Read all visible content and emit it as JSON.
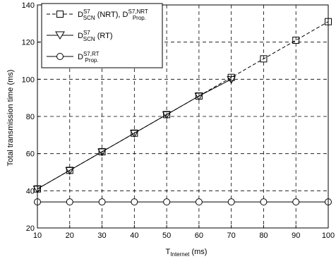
{
  "chart_data": {
    "type": "line",
    "xlabel": "T",
    "xlabel_sub": "Internet",
    "xlabel_unit": " (ms)",
    "ylabel": "Total transmission time (ms)",
    "xlim": [
      10,
      100
    ],
    "ylim": [
      20,
      140
    ],
    "xticks": [
      10,
      20,
      30,
      40,
      50,
      60,
      70,
      80,
      90,
      100
    ],
    "yticks": [
      20,
      40,
      60,
      80,
      100,
      120,
      140
    ],
    "grid": true,
    "legend_position": "top-left",
    "series": [
      {
        "id": "nrt",
        "line_style": "dashed",
        "marker": "square",
        "legend": {
          "d1": "D",
          "d1_sup": "S7",
          "d1_sub": "SCN",
          "mid": " (NRT), ",
          "d2": "D",
          "d2_sup": "S7,NRT",
          "d2_sub": "Prop."
        },
        "x": [
          10,
          20,
          30,
          40,
          50,
          60,
          70,
          80,
          90,
          100
        ],
        "y": [
          41,
          51,
          61,
          71,
          81,
          91,
          101,
          111,
          121,
          131
        ]
      },
      {
        "id": "rt",
        "line_style": "solid",
        "marker": "triangle-down",
        "legend": {
          "d1": "D",
          "d1_sup": "S7",
          "d1_sub": "SCN",
          "mid": " (RT)"
        },
        "x": [
          10,
          20,
          30,
          40,
          50,
          60,
          70
        ],
        "y": [
          41,
          51,
          61,
          71,
          81,
          91,
          100
        ]
      },
      {
        "id": "prop_rt",
        "line_style": "solid",
        "marker": "circle",
        "legend": {
          "d1": "D",
          "d1_sup": "S7,RT",
          "d1_sub": "Prop."
        },
        "x": [
          10,
          20,
          30,
          40,
          50,
          60,
          70,
          80,
          90,
          100
        ],
        "y": [
          34,
          34,
          34,
          34,
          34,
          34,
          34,
          34,
          34,
          34
        ]
      }
    ]
  }
}
